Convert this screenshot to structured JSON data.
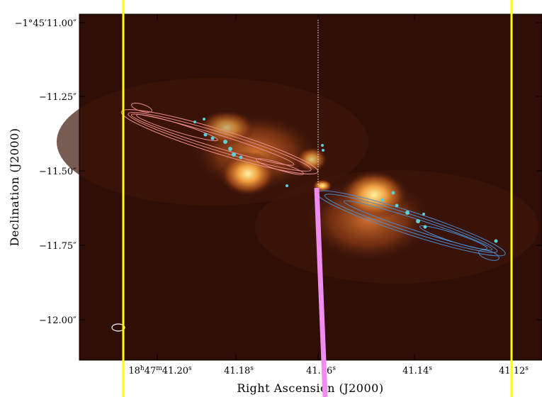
{
  "figure": {
    "x_label": "Right Ascension (J2000)",
    "y_label": "Declination (J2000)",
    "x_ticks": [
      [
        "18",
        "h",
        "47",
        "m",
        "41.20",
        "s"
      ],
      [
        "41.18",
        "s"
      ],
      [
        "41.16",
        "s"
      ],
      [
        "41.14",
        "s"
      ],
      [
        "41.12",
        "s"
      ]
    ],
    "y_ticks": [
      "−1°45′11.00″",
      "−11.25″",
      "−11.50″",
      "−11.75″",
      "−12.00″"
    ]
  }
}
